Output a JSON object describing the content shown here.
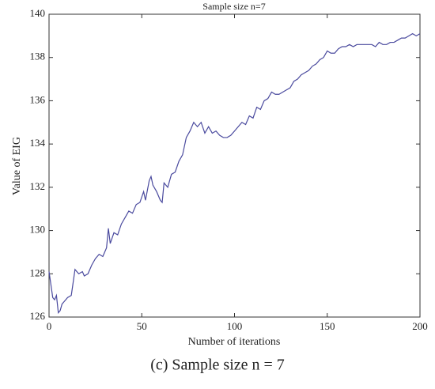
{
  "chart_data": {
    "type": "line",
    "title": "Sample size n=7",
    "xlabel": "Number of iterations",
    "ylabel": "Value of EIG",
    "caption": "(c) Sample size n = 7",
    "color": "#4a4a9e",
    "x": [
      0,
      1,
      2,
      3,
      4,
      5,
      6,
      7,
      8,
      10,
      12,
      13,
      14,
      16,
      18,
      19,
      21,
      23,
      25,
      27,
      29,
      31,
      32,
      33,
      35,
      37,
      39,
      41,
      43,
      45,
      47,
      49,
      51,
      52,
      54,
      55,
      56,
      58,
      60,
      61,
      62,
      64,
      66,
      68,
      70,
      72,
      74,
      76,
      78,
      80,
      82,
      84,
      86,
      88,
      90,
      92,
      94,
      96,
      98,
      100,
      102,
      104,
      106,
      108,
      110,
      112,
      114,
      116,
      118,
      120,
      122,
      124,
      126,
      128,
      130,
      132,
      134,
      136,
      138,
      140,
      142,
      144,
      146,
      148,
      150,
      152,
      154,
      156,
      158,
      160,
      162,
      164,
      166,
      168,
      170,
      172,
      174,
      176,
      178,
      180,
      182,
      184,
      186,
      188,
      190,
      192,
      194,
      196,
      198,
      200
    ],
    "values": [
      128.1,
      127.5,
      126.9,
      126.8,
      127.0,
      126.2,
      126.3,
      126.6,
      126.7,
      126.9,
      127.0,
      127.6,
      128.2,
      128.0,
      128.1,
      127.9,
      128.0,
      128.4,
      128.7,
      128.9,
      128.8,
      129.2,
      130.1,
      129.4,
      129.9,
      129.8,
      130.3,
      130.6,
      130.9,
      130.8,
      131.2,
      131.3,
      131.8,
      131.4,
      132.3,
      132.5,
      132.1,
      131.8,
      131.4,
      131.3,
      132.2,
      132.0,
      132.6,
      132.7,
      133.2,
      133.5,
      134.3,
      134.6,
      135.0,
      134.8,
      135.0,
      134.5,
      134.8,
      134.5,
      134.6,
      134.4,
      134.3,
      134.3,
      134.4,
      134.6,
      134.8,
      135.0,
      134.9,
      135.3,
      135.2,
      135.7,
      135.6,
      136.0,
      136.1,
      136.4,
      136.3,
      136.3,
      136.4,
      136.5,
      136.6,
      136.9,
      137.0,
      137.2,
      137.3,
      137.4,
      137.6,
      137.7,
      137.9,
      138.0,
      138.3,
      138.2,
      138.2,
      138.4,
      138.5,
      138.5,
      138.6,
      138.5,
      138.6,
      138.6,
      138.6,
      138.6,
      138.6,
      138.5,
      138.7,
      138.6,
      138.6,
      138.7,
      138.7,
      138.8,
      138.9,
      138.9,
      139.0,
      139.1,
      139.0,
      139.1
    ],
    "xlim": [
      0,
      200
    ],
    "xticks": [
      0,
      50,
      100,
      150,
      200
    ],
    "ylim": [
      126,
      140
    ],
    "yticks": [
      126,
      128,
      130,
      132,
      134,
      136,
      138,
      140
    ],
    "grid": false
  }
}
